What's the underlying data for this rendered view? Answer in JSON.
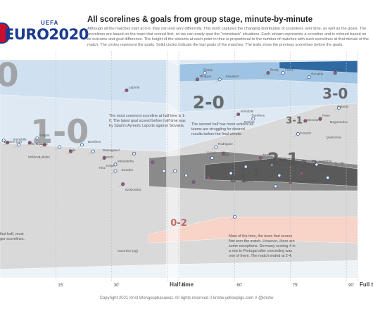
{
  "header": {
    "logo_top": "UEFA",
    "logo_main": "EURO2020",
    "title": "All scorelines & goals from group stage, minute-by-minute",
    "intro": "Although all the matches start at 0-0, they can end very differently. This work captures the changing distribution of scorelines over time, as well as the goals. The scorelines are based on the team that scored first, so we can easily spot the \"comeback\" situations. Each stream represents a scoreline and is colored based on its outcome and goal difference. The height of the streams at each point in time is proportional to the number of matches with such scorelines at that minute of the match. The circles represent the goals. Solid circles indicate the last goals of the matches. The trails show the previous scorelines before the goals."
  },
  "annotations": {
    "most_common": "The most commont scoreline at half time is 1-0. The latest goal scored before half time was by Spain's Aymeric Laporte against Slovakia.",
    "second_half": "The second half has more actions as teams are struggling for desired results before the final whistle.",
    "comeback": "Most of the time, the team that scores first won the match. However, there are some exceptions. Germany scoring 4 in a row to Portugal after conceding was one of them. The match ended at 2-4.",
    "left_partial": "first half, most ger scorelines."
  },
  "footer": "Copyright 2021 Krist Wongsuphasawat. All rights reserved  //  kristw.yellowpigs.com  //  @kristw",
  "chart_data": {
    "type": "area",
    "title": "All scorelines & goals from group stage, minute-by-minute",
    "x_axis": {
      "range": [
        0,
        96
      ],
      "ticks": [
        {
          "minute": 15,
          "label": "15'"
        },
        {
          "minute": 30,
          "label": "30'"
        },
        {
          "minute": 45,
          "label": "Half time",
          "bold": true
        },
        {
          "minute": 48,
          "label": "45'"
        },
        {
          "minute": 63,
          "label": "60'"
        },
        {
          "minute": 78,
          "label": "75'"
        },
        {
          "minute": 93,
          "label": "90'"
        },
        {
          "minute": 96,
          "label": "Full time",
          "bold": true
        }
      ]
    },
    "stream_labels": [
      {
        "text": "0",
        "x": 2,
        "y": 92,
        "size": 46,
        "color": "#9a9a9a"
      },
      {
        "text": "1-0",
        "x": 16,
        "y": 66,
        "size": 46,
        "color": "#9a9a9a"
      },
      {
        "text": "2-0",
        "x": 56,
        "y": 80,
        "size": 25,
        "color": "#555555"
      },
      {
        "text": "3-0",
        "x": 90,
        "y": 84,
        "size": 20,
        "color": "#555555"
      },
      {
        "text": "2-1",
        "x": 76,
        "y": 54,
        "size": 25,
        "color": "#555555"
      },
      {
        "text": "1-1",
        "x": 67,
        "y": 48,
        "size": 16,
        "color": "#555555"
      },
      {
        "text": "2-2",
        "x": 83,
        "y": 52,
        "size": 13,
        "color": "#555555"
      },
      {
        "text": "3-1",
        "x": 79,
        "y": 72,
        "size": 13,
        "color": "#555555"
      },
      {
        "text": "0-1",
        "x": 64,
        "y": 45,
        "size": 13,
        "color": "#555555"
      },
      {
        "text": "0-2",
        "x": 48,
        "y": 25,
        "size": 13,
        "color": "#c0504d"
      },
      {
        "text": "1-2",
        "x": 91,
        "y": 52,
        "size": 8,
        "color": "#777777"
      }
    ],
    "goal_labels": [
      {
        "text": "Laporte",
        "minute": 34,
        "y": 87
      },
      {
        "text": "Demirel (og)",
        "minute": 0.5,
        "y": 62
      },
      {
        "text": "Immobile",
        "minute": 3,
        "y": 63
      },
      {
        "text": "Hakimi (og)",
        "minute": 7,
        "y": 61
      },
      {
        "text": "Insigne",
        "minute": 10,
        "y": 65
      },
      {
        "text": "Ronaldo",
        "minute": 9,
        "y": 61
      },
      {
        "text": "Bale",
        "minute": 18,
        "y": 58
      },
      {
        "text": "Dumfries",
        "minute": 23,
        "y": 62
      },
      {
        "text": "Damsgaard",
        "minute": 27,
        "y": 58
      },
      {
        "text": "Havertz",
        "minute": 27,
        "y": 55
      },
      {
        "text": "Moldova",
        "minute": 7,
        "y": 55
      },
      {
        "text": "Lukaku",
        "minute": 10,
        "y": 55
      },
      {
        "text": "Mirandinha",
        "minute": 31,
        "y": 53
      },
      {
        "text": "Kane",
        "minute": 28,
        "y": 51
      },
      {
        "text": "Szoboszlai",
        "minute": 33,
        "y": 40
      },
      {
        "text": "Sweden",
        "minute": 32,
        "y": 49
      },
      {
        "text": "Hinz",
        "minute": 26,
        "y": 50
      },
      {
        "text": "Mbappe",
        "minute": 53,
        "y": 92
      },
      {
        "text": "Depay",
        "minute": 54,
        "y": 95
      },
      {
        "text": "Klaassen",
        "minute": 60,
        "y": 92
      },
      {
        "text": "Boxaj",
        "minute": 72,
        "y": 95
      },
      {
        "text": "Frank",
        "minute": 76,
        "y": 95
      },
      {
        "text": "Ronaldo",
        "minute": 83,
        "y": 93
      },
      {
        "text": "Stig",
        "minute": 90,
        "y": 95
      },
      {
        "text": "Immobile",
        "minute": 64,
        "y": 76
      },
      {
        "text": "Dumfries",
        "minute": 67,
        "y": 74
      },
      {
        "text": "Roberts",
        "minute": 90,
        "y": 78
      },
      {
        "text": "Ramos",
        "minute": 65,
        "y": 71
      },
      {
        "text": "Benzema",
        "minute": 82,
        "y": 72
      },
      {
        "text": "Kane",
        "minute": 86,
        "y": 74
      },
      {
        "text": "Magomedov",
        "minute": 88,
        "y": 71
      },
      {
        "text": "Kovacic",
        "minute": 80,
        "y": 66
      },
      {
        "text": "Quaresma",
        "minute": 87,
        "y": 64
      },
      {
        "text": "Rodriguez",
        "minute": 58,
        "y": 61
      },
      {
        "text": "Schick",
        "minute": 55,
        "y": 57
      },
      {
        "text": "Pukki",
        "minute": 59,
        "y": 56
      },
      {
        "text": "Zenk",
        "minute": 69,
        "y": 53
      },
      {
        "text": "Gyoda",
        "minute": 71,
        "y": 54
      },
      {
        "text": "Morata",
        "minute": 70,
        "y": 56
      },
      {
        "text": "Lewandowski",
        "minute": 73,
        "y": 53
      },
      {
        "text": "Fahrdi",
        "minute": 65,
        "y": 44
      },
      {
        "text": "Goretzka",
        "minute": 85,
        "y": 53
      },
      {
        "text": "Gosens",
        "minute": 84,
        "y": 49
      },
      {
        "text": "Kjaer",
        "minute": 88,
        "y": 46
      },
      {
        "text": "Mbappe",
        "minute": 82,
        "y": 44
      },
      {
        "text": "Lewandowski",
        "minute": 78,
        "y": 44
      },
      {
        "text": "Guerreiro (og)",
        "minute": 31,
        "y": 12
      }
    ],
    "goals": [
      {
        "minute": 1,
        "y": 63,
        "solid": false
      },
      {
        "minute": 2,
        "y": 62,
        "solid": true
      },
      {
        "minute": 5,
        "y": 61,
        "solid": false
      },
      {
        "minute": 8,
        "y": 62,
        "solid": true
      },
      {
        "minute": 10,
        "y": 64,
        "solid": false
      },
      {
        "minute": 12,
        "y": 61,
        "solid": true
      },
      {
        "minute": 16,
        "y": 60,
        "solid": false
      },
      {
        "minute": 19,
        "y": 58,
        "solid": true
      },
      {
        "minute": 22,
        "y": 61,
        "solid": false
      },
      {
        "minute": 25,
        "y": 58,
        "solid": false
      },
      {
        "minute": 28,
        "y": 55,
        "solid": true
      },
      {
        "minute": 31,
        "y": 52,
        "solid": false
      },
      {
        "minute": 34,
        "y": 86,
        "solid": true
      },
      {
        "minute": 36,
        "y": 57,
        "solid": false
      },
      {
        "minute": 41,
        "y": 53,
        "solid": true
      },
      {
        "minute": 44,
        "y": 49,
        "solid": false
      },
      {
        "minute": 31,
        "y": 49,
        "solid": false
      },
      {
        "minute": 33,
        "y": 43,
        "solid": true
      },
      {
        "minute": 50,
        "y": 47,
        "solid": false
      },
      {
        "minute": 52,
        "y": 44,
        "solid": true
      },
      {
        "minute": 53,
        "y": 91,
        "solid": true
      },
      {
        "minute": 55,
        "y": 94,
        "solid": false
      },
      {
        "minute": 57,
        "y": 55,
        "solid": false
      },
      {
        "minute": 59,
        "y": 91,
        "solid": false
      },
      {
        "minute": 60,
        "y": 57,
        "solid": true
      },
      {
        "minute": 62,
        "y": 48,
        "solid": false
      },
      {
        "minute": 64,
        "y": 75,
        "solid": true
      },
      {
        "minute": 66,
        "y": 51,
        "solid": false
      },
      {
        "minute": 68,
        "y": 73,
        "solid": false
      },
      {
        "minute": 70,
        "y": 55,
        "solid": true
      },
      {
        "minute": 72,
        "y": 94,
        "solid": true
      },
      {
        "minute": 73,
        "y": 52,
        "solid": false
      },
      {
        "minute": 75,
        "y": 47,
        "solid": false
      },
      {
        "minute": 76,
        "y": 94,
        "solid": false
      },
      {
        "minute": 78,
        "y": 44,
        "solid": true
      },
      {
        "minute": 80,
        "y": 66,
        "solid": false
      },
      {
        "minute": 82,
        "y": 72,
        "solid": true
      },
      {
        "minute": 83,
        "y": 92,
        "solid": false
      },
      {
        "minute": 85,
        "y": 52,
        "solid": false
      },
      {
        "minute": 86,
        "y": 73,
        "solid": true
      },
      {
        "minute": 88,
        "y": 46,
        "solid": false
      },
      {
        "minute": 90,
        "y": 94,
        "solid": true
      },
      {
        "minute": 91,
        "y": 78,
        "solid": false
      },
      {
        "minute": 47,
        "y": 49,
        "solid": false
      },
      {
        "minute": 56,
        "y": 46,
        "solid": true
      },
      {
        "minute": 63,
        "y": 28,
        "solid": false
      },
      {
        "minute": 74,
        "y": 42,
        "solid": false
      },
      {
        "minute": 81,
        "y": 48,
        "solid": true
      },
      {
        "minute": 58,
        "y": 60,
        "solid": false
      }
    ],
    "notes": "Stream areas: gray = draws, blue = first-scoring team leads (darker = larger margin), red = comeback for the other team. Dashed lines mark 15-minute intervals; shaded vertical band marks half time."
  }
}
